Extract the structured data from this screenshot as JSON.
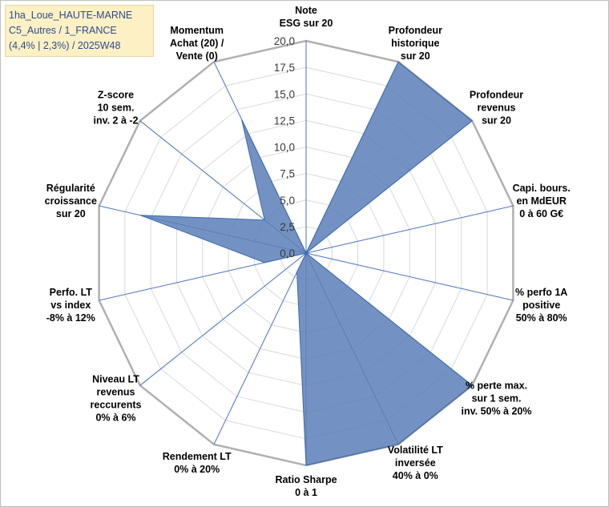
{
  "chart_data": {
    "type": "radar",
    "title_lines": [
      "1ha_Loue_HAUTE-MARNE",
      "C5_Autres / 1_FRANCE",
      "(4,4% | 2,3%) / 2025W48"
    ],
    "rmax": 20,
    "tick_labels": [
      "0,0",
      "2,5",
      "5,0",
      "7,5",
      "10,0",
      "12,5",
      "15,0",
      "17,5",
      "20,0"
    ],
    "axes": [
      {
        "label": [
          "Note",
          "ESG sur 20"
        ],
        "value": 0
      },
      {
        "label": [
          "Profondeur",
          "historique",
          "sur 20"
        ],
        "value": 20
      },
      {
        "label": [
          "Profondeur",
          "revenus",
          "sur 20"
        ],
        "value": 20
      },
      {
        "label": [
          "Capi. bours.",
          "en MdEUR",
          "0 à 60 G€"
        ],
        "value": 0
      },
      {
        "label": [
          "% perfo 1A",
          "positive",
          "50% à 80%"
        ],
        "value": 0
      },
      {
        "label": [
          "% perte max.",
          "sur 1 sem.",
          "inv. 50% à 20%"
        ],
        "value": 20
      },
      {
        "label": [
          "Volatilité LT",
          "inversée",
          "40% à 0%"
        ],
        "value": 20
      },
      {
        "label": [
          "Ratio Sharpe",
          "0 à 1"
        ],
        "value": 20
      },
      {
        "label": [
          "Rendement LT",
          "0% à 20%"
        ],
        "value": 2
      },
      {
        "label": [
          "Niveau LT",
          "revenus",
          "reccurents",
          "0% à 6%"
        ],
        "value": 0
      },
      {
        "label": [
          "Perfo. LT",
          "vs index",
          "-8% à 12%"
        ],
        "value": 4
      },
      {
        "label": [
          "Régularité",
          "croissance",
          "sur 20"
        ],
        "value": 16
      },
      {
        "label": [
          "Z-score",
          "10 sem.",
          "inv. 2 à -2"
        ],
        "value": 5
      },
      {
        "label": [
          "Momentum",
          "Achat (20) /",
          "Vente (0)"
        ],
        "value": 14
      }
    ],
    "colors": {
      "fill": "#5b7fb8",
      "stroke": "#3d6aa8",
      "axis": "#4a72c0",
      "grid": "#d9d9d9",
      "outer": "#b0b0b0",
      "text": "#000000"
    }
  }
}
